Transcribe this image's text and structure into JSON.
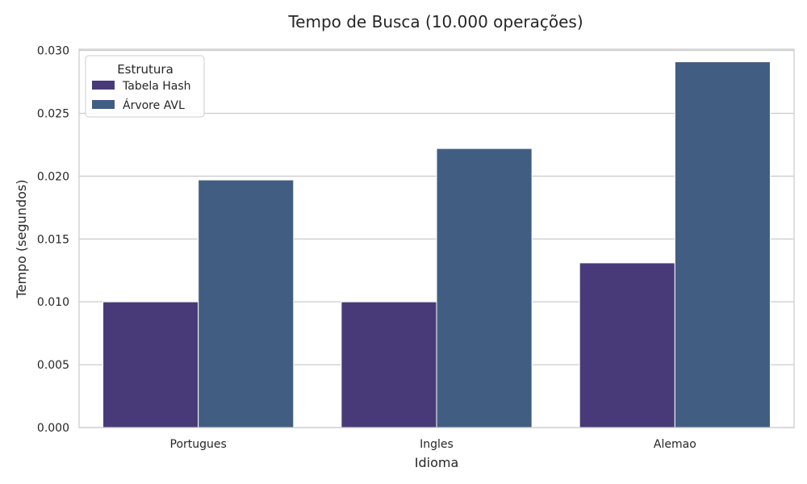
{
  "chart_data": {
    "type": "bar",
    "title": "Tempo de Busca (10.000 operações)",
    "xlabel": "Idioma",
    "ylabel": "Tempo (segundos)",
    "categories": [
      "Portugues",
      "Ingles",
      "Alemao"
    ],
    "series": [
      {
        "name": "Tabela Hash",
        "color": "#483a78",
        "values": [
          0.01,
          0.01,
          0.0131
        ]
      },
      {
        "name": "Árvore AVL",
        "color": "#415e82",
        "values": [
          0.0197,
          0.0222,
          0.0291
        ]
      }
    ],
    "ylim": [
      0,
      0.0301
    ],
    "yticks": [
      0.0,
      0.005,
      0.01,
      0.015,
      0.02,
      0.025,
      0.03
    ],
    "ytick_labels": [
      "0.000",
      "0.005",
      "0.010",
      "0.015",
      "0.020",
      "0.025",
      "0.030"
    ],
    "grid": true,
    "legend": {
      "title": "Estrutura",
      "position": "top-left"
    }
  }
}
